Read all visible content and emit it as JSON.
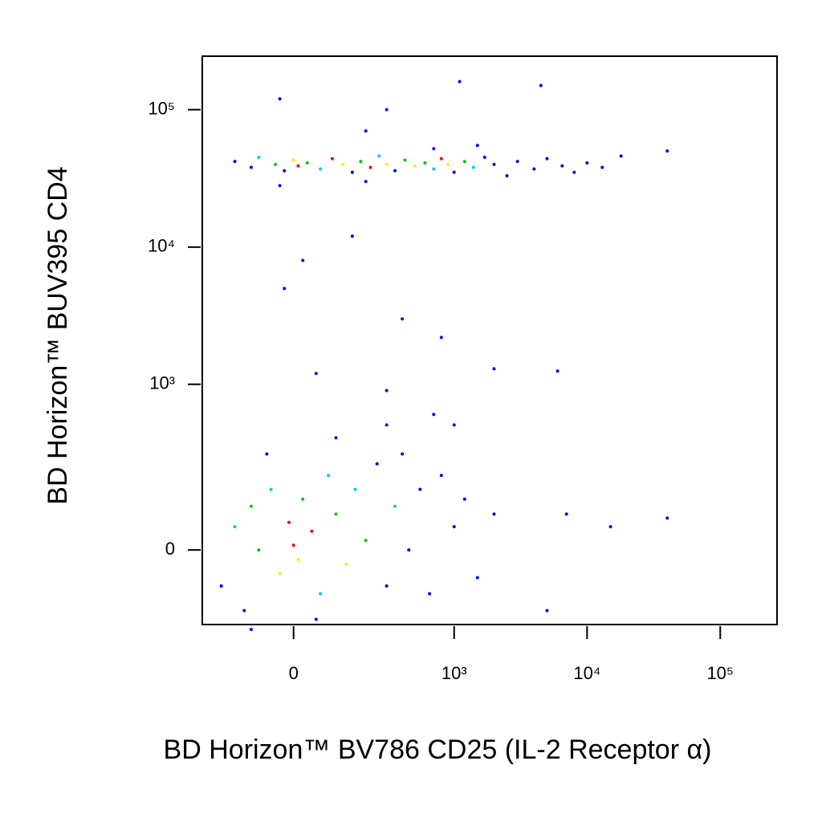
{
  "chart_data": {
    "type": "scatter",
    "x_label": "BD Horizon™ BV786 CD25 (IL-2 Receptor α)",
    "y_label": "BD Horizon™ BUV395  CD4",
    "scale": "biexponential",
    "xlim": [
      -290,
      267000
    ],
    "ylim": [
      -200,
      245000
    ],
    "xticks": [
      {
        "value": 0,
        "label": "0"
      },
      {
        "value": 1000,
        "label": "10³"
      },
      {
        "value": 10000,
        "label": "10⁴"
      },
      {
        "value": 100000,
        "label": "10⁵"
      }
    ],
    "yticks": [
      {
        "value": 0,
        "label": "0"
      },
      {
        "value": 1000,
        "label": "10³"
      },
      {
        "value": 10000,
        "label": "10⁴"
      },
      {
        "value": 100000,
        "label": "10⁵"
      }
    ],
    "series": [
      {
        "x": [
          -150,
          -100,
          -80,
          -40,
          -20,
          0,
          10,
          30,
          60,
          90,
          120,
          150,
          180,
          220,
          260,
          300,
          350,
          420,
          500,
          600,
          700,
          800,
          900,
          1000,
          1200,
          1400,
          1700,
          2000,
          2500,
          3000,
          4000,
          5000,
          6500,
          8000,
          10000,
          13000,
          18000,
          40000,
          -30,
          200,
          700,
          1500,
          300,
          1100,
          4500,
          -30,
          200,
          20,
          -20,
          150,
          400,
          800,
          2000,
          6000,
          50,
          300,
          -200,
          -150,
          -120,
          -100,
          -80,
          -50,
          -30,
          -10,
          0,
          10,
          20,
          40,
          60,
          80,
          100,
          130,
          160,
          200,
          250,
          300,
          350,
          400,
          450,
          550,
          650,
          800,
          1000,
          1200,
          1500,
          2000,
          -60,
          100,
          300,
          700,
          1000,
          7000,
          15000,
          40000,
          5000,
          -100,
          50
        ],
        "values": [
          42000,
          38000,
          45000,
          40000,
          36000,
          43000,
          39000,
          41000,
          37000,
          44000,
          40000,
          35000,
          42000,
          38000,
          46000,
          40000,
          36000,
          43000,
          39000,
          41000,
          37000,
          44000,
          40000,
          35000,
          42000,
          38000,
          45000,
          40000,
          33000,
          42000,
          37000,
          44000,
          39000,
          35000,
          41000,
          38000,
          46000,
          50000,
          28000,
          30000,
          52000,
          55000,
          100000,
          160000,
          150000,
          120000,
          70000,
          8000,
          5000,
          12000,
          3000,
          2200,
          1300,
          1250,
          1200,
          900,
          -80,
          50,
          -150,
          100,
          0,
          150,
          -50,
          60,
          10,
          -20,
          120,
          40,
          -100,
          200,
          80,
          -30,
          150,
          20,
          250,
          -80,
          100,
          300,
          0,
          150,
          -100,
          200,
          50,
          120,
          -60,
          80,
          300,
          400,
          500,
          600,
          500,
          80,
          50,
          70,
          -150,
          -220,
          -180
        ],
        "colors": [
          "#0000ff",
          "#0000ff",
          "#00c8ff",
          "#00c800",
          "#0000ff",
          "#ffee00",
          "#ff0000",
          "#00c800",
          "#00c8ff",
          "#ff0000",
          "#ffee00",
          "#0000ff",
          "#00c800",
          "#ff0000",
          "#00c8ff",
          "#ffee00",
          "#0000ff",
          "#00c800",
          "#ffee00",
          "#00c800",
          "#00c8ff",
          "#ff0000",
          "#ffee00",
          "#0000ff",
          "#00c800",
          "#00c8ff",
          "#0000ff",
          "#0000ff",
          "#0000ff",
          "#0000ff",
          "#0000ff",
          "#0000ff",
          "#0000ff",
          "#0000ff",
          "#0000ff",
          "#0000ff",
          "#0000ff",
          "#0000ff",
          "#0000ff",
          "#0000ff",
          "#0000ff",
          "#0000ff",
          "#0000ff",
          "#0000ff",
          "#0000ff",
          "#0000ff",
          "#0000ff",
          "#0000ff",
          "#0000ff",
          "#0000ff",
          "#0000ff",
          "#0000ff",
          "#0000ff",
          "#0000ff",
          "#0000ff",
          "#0000ff",
          "#0000ff",
          "#00c8ff",
          "#0000ff",
          "#00c800",
          "#00c800",
          "#00c8ff",
          "#ffee00",
          "#ff0000",
          "#ff0000",
          "#ffee00",
          "#00c800",
          "#ff0000",
          "#00c8ff",
          "#00c8ff",
          "#00c800",
          "#ffee00",
          "#00c8ff",
          "#00c800",
          "#0000ff",
          "#0000ff",
          "#00c8ff",
          "#0000ff",
          "#0000ff",
          "#0000ff",
          "#0000ff",
          "#0000ff",
          "#0000ff",
          "#0000ff",
          "#0000ff",
          "#0000ff",
          "#0000ff",
          "#0000ff",
          "#0000ff",
          "#0000ff",
          "#0000ff",
          "#0000ff",
          "#0000ff",
          "#0000ff",
          "#0000ff",
          "#0000ff",
          "#0000ff"
        ]
      }
    ]
  }
}
